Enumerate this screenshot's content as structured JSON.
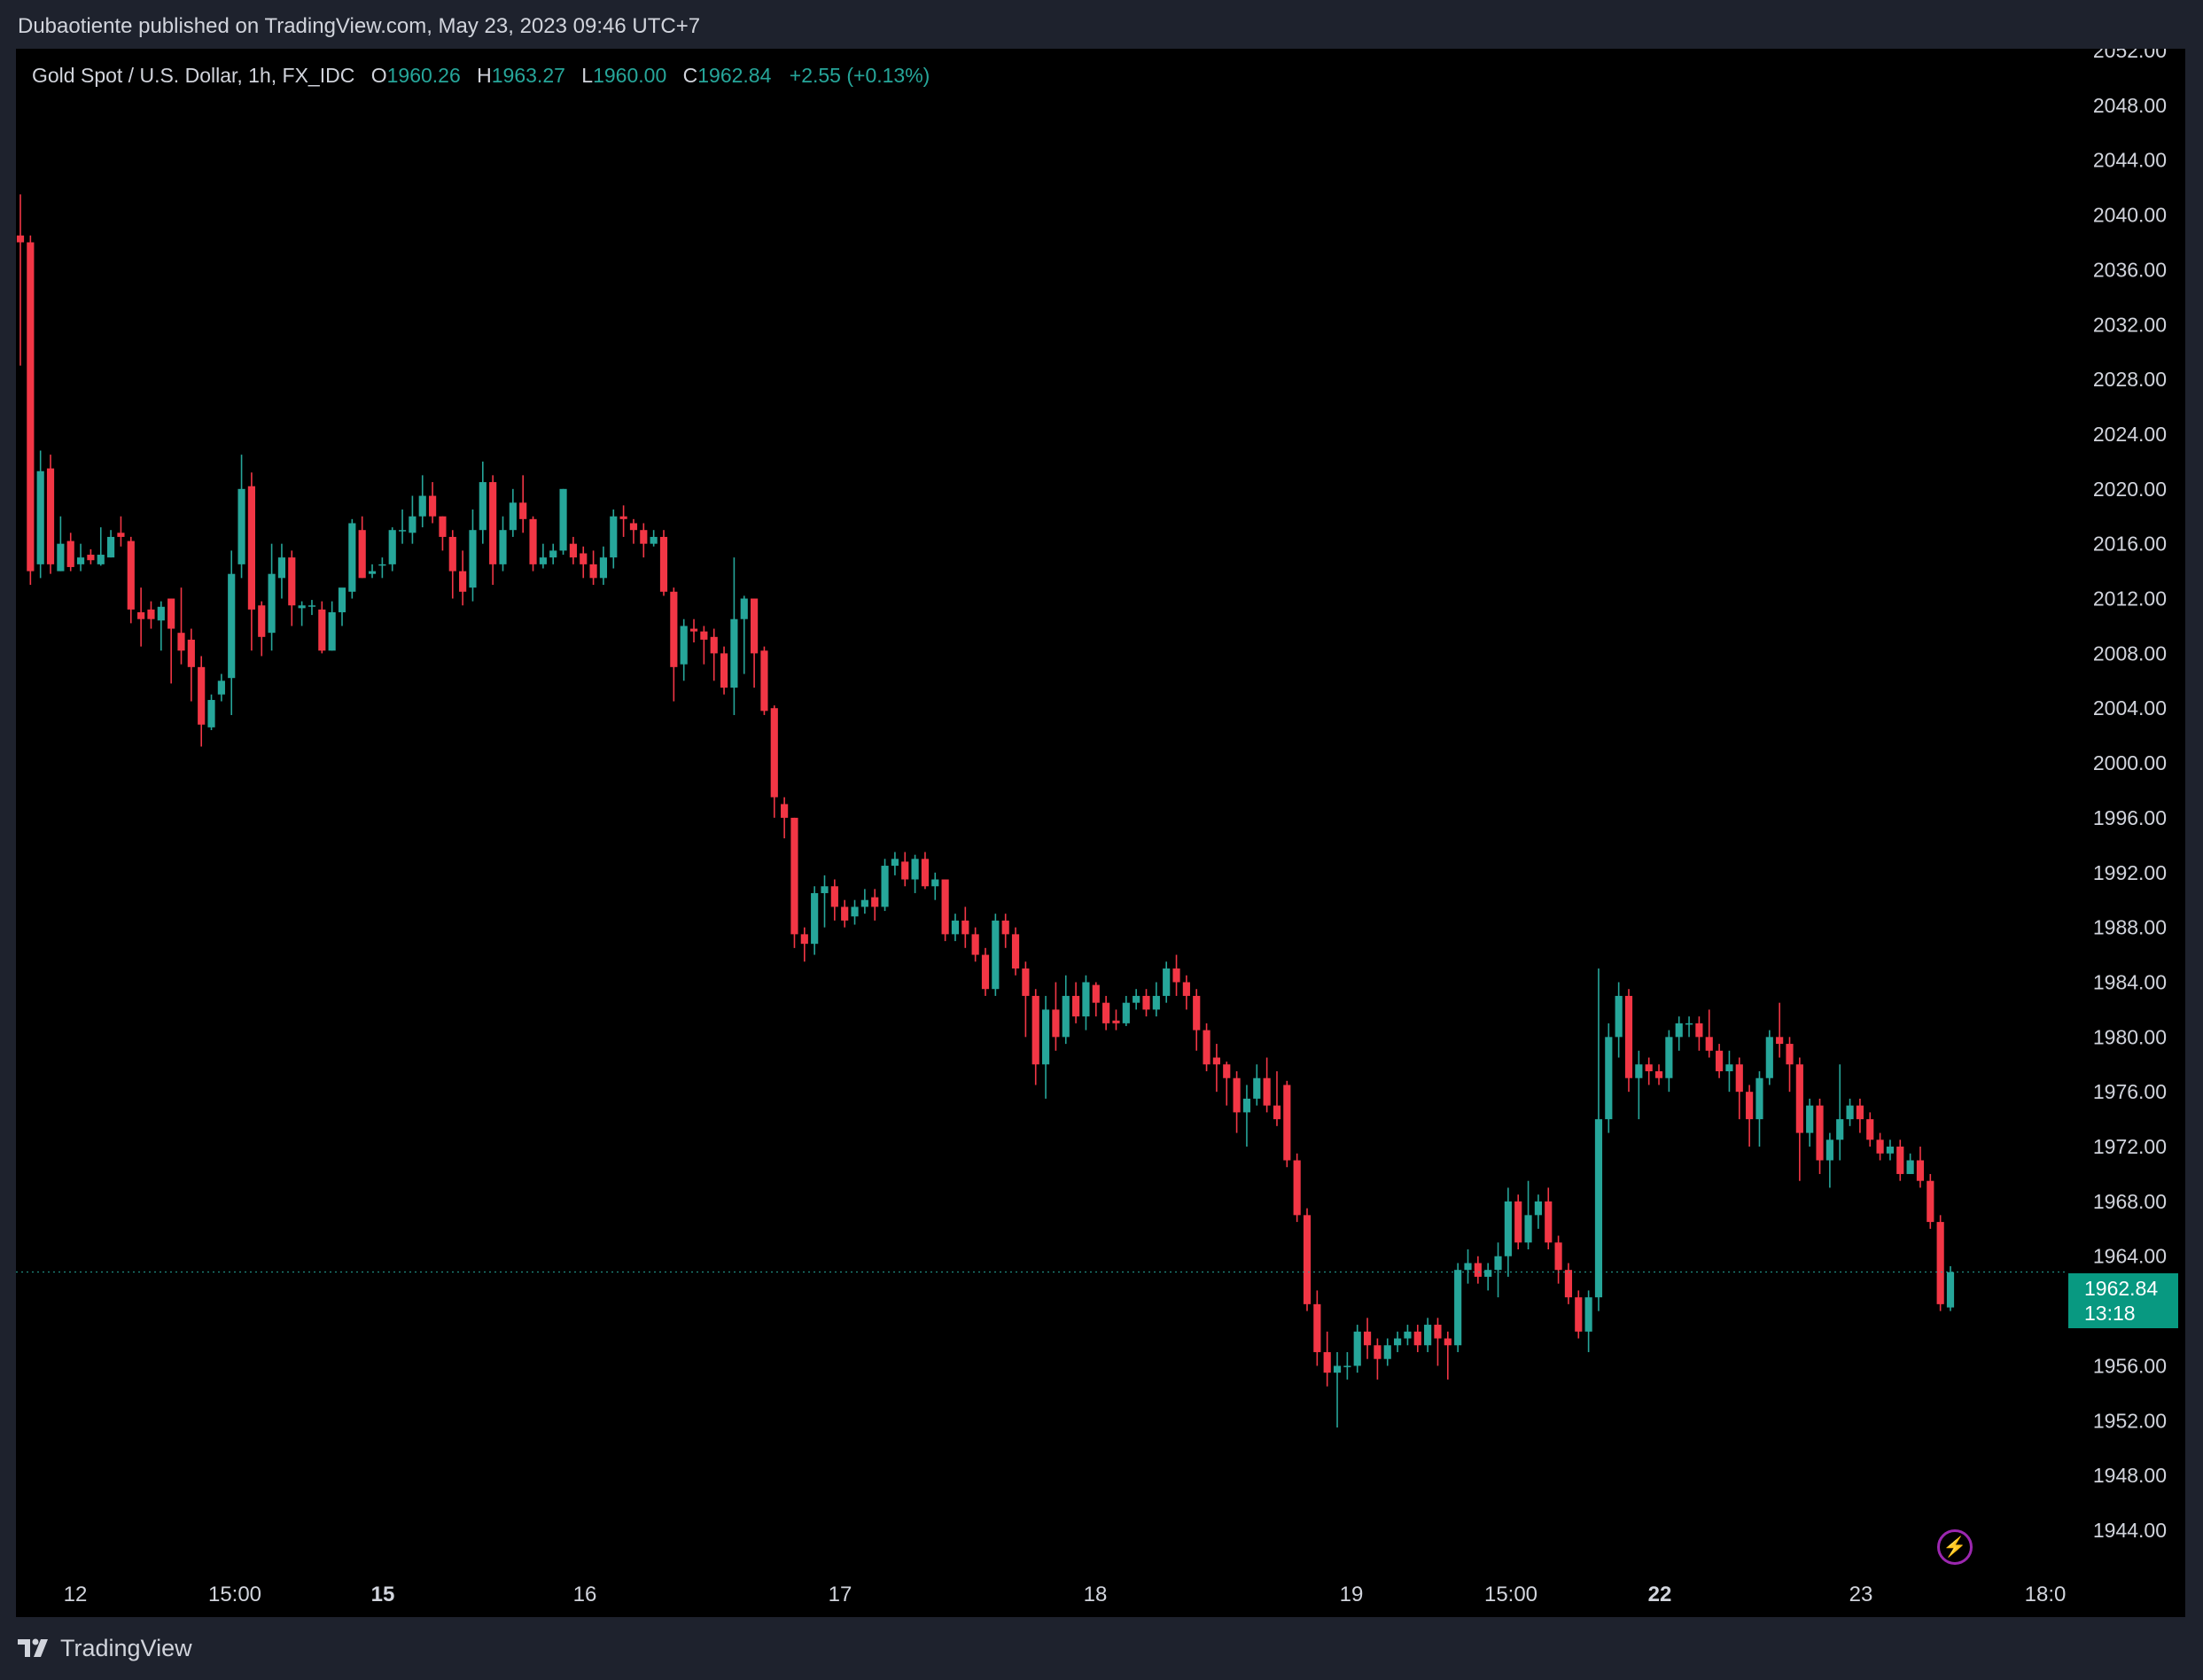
{
  "header": {
    "published_text": "Dubaotiente published on TradingView.com, May 23, 2023 09:46 UTC+7"
  },
  "legend": {
    "symbol": "Gold Spot / U.S. Dollar, 1h, FX_IDC",
    "open_label": "O",
    "open": "1960.26",
    "high_label": "H",
    "high": "1963.27",
    "low_label": "L",
    "low": "1960.00",
    "close_label": "C",
    "close": "1962.84",
    "change": "+2.55 (+0.13%)"
  },
  "price_badge": {
    "price": "1962.84",
    "countdown": "13:18"
  },
  "footer": {
    "brand": "TradingView"
  },
  "colors": {
    "up": "#26a69a",
    "down": "#f23645",
    "background": "#000000",
    "frame": "#1e222d",
    "last_price_line": "#26a69a",
    "badge": "#089981"
  },
  "icons": {
    "flash": "lightning-bolt-icon",
    "logo": "tradingview-logo-icon"
  },
  "chart_data": {
    "type": "candlestick",
    "title": "Gold Spot / U.S. Dollar, 1h, FX_IDC",
    "y_ticks": [
      "2052.00",
      "2048.00",
      "2044.00",
      "2040.00",
      "2036.00",
      "2032.00",
      "2028.00",
      "2024.00",
      "2020.00",
      "2016.00",
      "2012.00",
      "2008.00",
      "2004.00",
      "2000.00",
      "1996.00",
      "1992.00",
      "1988.00",
      "1984.00",
      "1980.00",
      "1976.00",
      "1972.00",
      "1968.00",
      "1964.00",
      "1960.00",
      "1956.00",
      "1952.00",
      "1948.00",
      "1944.00"
    ],
    "ylim": [
      1942,
      2052
    ],
    "x_ticks": [
      {
        "label": "12",
        "bold": false
      },
      {
        "label": "15:00",
        "bold": false
      },
      {
        "label": "15",
        "bold": true
      },
      {
        "label": "16",
        "bold": false
      },
      {
        "label": "17",
        "bold": false
      },
      {
        "label": "18",
        "bold": false
      },
      {
        "label": "19",
        "bold": false
      },
      {
        "label": "15:00",
        "bold": false
      },
      {
        "label": "22",
        "bold": true
      },
      {
        "label": "23",
        "bold": false
      },
      {
        "label": "18:0",
        "bold": false
      }
    ],
    "last_price": 1962.84,
    "grid": false,
    "candles": [
      [
        2038.5,
        2038.0,
        2041.5,
        2029.0
      ],
      [
        2038.0,
        2014.0,
        2038.5,
        2013.0
      ],
      [
        2014.5,
        2021.3,
        2022.8,
        2013.5
      ],
      [
        2021.5,
        2014.5,
        2022.5,
        2013.8
      ],
      [
        2014.0,
        2016.0,
        2018.0,
        2014.0
      ],
      [
        2016.2,
        2014.3,
        2016.8,
        2014.0
      ],
      [
        2014.5,
        2015.0,
        2016.0,
        2014.0
      ],
      [
        2015.2,
        2014.8,
        2015.6,
        2014.5
      ],
      [
        2014.5,
        2015.2,
        2017.2,
        2014.4
      ],
      [
        2015.0,
        2016.5,
        2017.0,
        2015.0
      ],
      [
        2016.8,
        2016.5,
        2018.0,
        2015.8
      ],
      [
        2016.2,
        2011.2,
        2016.5,
        2010.2
      ],
      [
        2011.0,
        2010.5,
        2012.8,
        2008.5
      ],
      [
        2011.2,
        2010.5,
        2011.8,
        2009.8
      ],
      [
        2010.4,
        2011.4,
        2011.8,
        2008.2
      ],
      [
        2012.0,
        2009.8,
        2012.0,
        2005.8
      ],
      [
        2009.5,
        2008.2,
        2012.8,
        2007.2
      ],
      [
        2009.0,
        2007.0,
        2009.8,
        2004.5
      ],
      [
        2007.0,
        2002.8,
        2007.8,
        2001.2
      ],
      [
        2002.6,
        2004.6,
        2005.0,
        2002.4
      ],
      [
        2005.0,
        2006.0,
        2006.5,
        2004.5
      ],
      [
        2006.2,
        2013.8,
        2015.5,
        2003.5
      ],
      [
        2014.5,
        2020.0,
        2022.5,
        2013.5
      ],
      [
        2020.2,
        2011.2,
        2021.2,
        2008.2
      ],
      [
        2011.5,
        2009.2,
        2011.8,
        2007.8
      ],
      [
        2009.5,
        2013.8,
        2016.0,
        2008.2
      ],
      [
        2013.5,
        2015.0,
        2016.0,
        2012.0
      ],
      [
        2015.0,
        2011.5,
        2015.5,
        2010.0
      ],
      [
        2011.3,
        2011.5,
        2011.8,
        2010.0
      ],
      [
        2011.5,
        2011.5,
        2011.9,
        2010.8
      ],
      [
        2011.2,
        2008.2,
        2011.8,
        2008.0
      ],
      [
        2008.2,
        2011.0,
        2011.8,
        2008.2
      ],
      [
        2011.0,
        2012.8,
        2012.0,
        2010.0
      ],
      [
        2012.5,
        2017.5,
        2017.8,
        2012.0
      ],
      [
        2017.0,
        2013.5,
        2018.0,
        2013.5
      ],
      [
        2013.8,
        2014.0,
        2014.5,
        2013.5
      ],
      [
        2014.5,
        2014.5,
        2015.0,
        2013.5
      ],
      [
        2014.5,
        2017.0,
        2017.2,
        2014.0
      ],
      [
        2017.0,
        2017.0,
        2018.5,
        2016.0
      ],
      [
        2016.8,
        2018.0,
        2019.5,
        2016.0
      ],
      [
        2018.0,
        2019.5,
        2021.0,
        2017.2
      ],
      [
        2019.5,
        2018.0,
        2020.5,
        2017.5
      ],
      [
        2018.0,
        2016.5,
        2018.0,
        2015.5
      ],
      [
        2016.5,
        2014.0,
        2017.0,
        2012.0
      ],
      [
        2014.0,
        2012.5,
        2015.5,
        2011.5
      ],
      [
        2012.8,
        2017.0,
        2018.5,
        2011.8
      ],
      [
        2017.0,
        2020.5,
        2022.0,
        2016.0
      ],
      [
        2020.5,
        2014.5,
        2021.0,
        2013.0
      ],
      [
        2014.5,
        2017.0,
        2018.0,
        2014.0
      ],
      [
        2017.0,
        2019.0,
        2020.0,
        2016.5
      ],
      [
        2019.0,
        2017.8,
        2021.0,
        2016.8
      ],
      [
        2017.8,
        2014.5,
        2018.0,
        2014.0
      ],
      [
        2014.5,
        2015.0,
        2016.0,
        2014.2
      ],
      [
        2015.0,
        2015.5,
        2016.0,
        2014.5
      ],
      [
        2015.5,
        2020.0,
        2020.0,
        2015.2
      ],
      [
        2016.0,
        2015.0,
        2016.5,
        2014.5
      ],
      [
        2015.3,
        2014.5,
        2015.8,
        2013.5
      ],
      [
        2014.5,
        2013.5,
        2015.5,
        2013.0
      ],
      [
        2013.5,
        2015.0,
        2015.8,
        2013.0
      ],
      [
        2015.0,
        2018.0,
        2018.5,
        2014.2
      ],
      [
        2018.0,
        2017.8,
        2018.8,
        2016.5
      ],
      [
        2017.5,
        2017.0,
        2017.8,
        2016.0
      ],
      [
        2017.0,
        2016.0,
        2017.5,
        2015.0
      ],
      [
        2016.0,
        2016.5,
        2017.0,
        2015.8
      ],
      [
        2016.5,
        2012.5,
        2017.0,
        2012.2
      ],
      [
        2012.5,
        2007.0,
        2012.8,
        2004.5
      ],
      [
        2007.2,
        2010.0,
        2010.5,
        2006.0
      ],
      [
        2009.8,
        2009.6,
        2010.5,
        2008.8
      ],
      [
        2009.6,
        2009.0,
        2010.0,
        2007.2
      ],
      [
        2009.2,
        2008.0,
        2009.8,
        2006.0
      ],
      [
        2008.0,
        2005.5,
        2008.5,
        2005.0
      ],
      [
        2005.5,
        2010.5,
        2015.0,
        2003.5
      ],
      [
        2010.5,
        2012.0,
        2012.2,
        2006.5
      ],
      [
        2012.0,
        2008.0,
        2012.0,
        2005.5
      ],
      [
        2008.2,
        2003.8,
        2008.5,
        2003.5
      ],
      [
        2004.0,
        1997.5,
        2004.2,
        1996.0
      ],
      [
        1997.0,
        1996.0,
        1997.5,
        1994.5
      ],
      [
        1996.0,
        1987.5,
        1996.0,
        1986.5
      ],
      [
        1987.5,
        1986.8,
        1988.0,
        1985.5
      ],
      [
        1986.8,
        1990.5,
        1991.0,
        1986.0
      ],
      [
        1990.5,
        1991.0,
        1991.8,
        1988.0
      ],
      [
        1991.0,
        1989.5,
        1991.5,
        1988.5
      ],
      [
        1989.5,
        1988.5,
        1990.0,
        1988.0
      ],
      [
        1988.8,
        1989.5,
        1990.0,
        1988.2
      ],
      [
        1989.5,
        1990.0,
        1990.8,
        1989.0
      ],
      [
        1990.2,
        1989.5,
        1990.8,
        1988.5
      ],
      [
        1989.5,
        1992.5,
        1993.0,
        1989.2
      ],
      [
        1992.5,
        1993.0,
        1993.5,
        1991.8
      ],
      [
        1992.8,
        1991.5,
        1993.5,
        1991.0
      ],
      [
        1991.5,
        1993.0,
        1993.3,
        1990.5
      ],
      [
        1993.0,
        1991.0,
        1993.5,
        1990.8
      ],
      [
        1991.0,
        1991.5,
        1992.0,
        1990.0
      ],
      [
        1991.5,
        1987.5,
        1991.5,
        1987.0
      ],
      [
        1987.5,
        1988.5,
        1989.0,
        1987.0
      ],
      [
        1988.5,
        1987.5,
        1989.5,
        1986.5
      ],
      [
        1987.5,
        1986.0,
        1988.0,
        1985.5
      ],
      [
        1986.0,
        1983.5,
        1986.5,
        1983.0
      ],
      [
        1983.5,
        1988.5,
        1989.0,
        1983.0
      ],
      [
        1988.5,
        1987.5,
        1989.0,
        1986.5
      ],
      [
        1987.5,
        1985.0,
        1988.0,
        1984.5
      ],
      [
        1985.0,
        1983.0,
        1985.5,
        1980.0
      ],
      [
        1983.0,
        1978.0,
        1983.5,
        1976.5
      ],
      [
        1978.0,
        1982.0,
        1983.0,
        1975.5
      ],
      [
        1982.0,
        1980.0,
        1984.0,
        1979.0
      ],
      [
        1980.0,
        1983.0,
        1984.5,
        1979.5
      ],
      [
        1983.0,
        1981.5,
        1984.0,
        1981.0
      ],
      [
        1981.5,
        1984.0,
        1984.5,
        1980.5
      ],
      [
        1983.8,
        1982.5,
        1984.0,
        1981.5
      ],
      [
        1982.5,
        1981.0,
        1983.0,
        1980.5
      ],
      [
        1981.2,
        1981.0,
        1982.0,
        1980.5
      ],
      [
        1981.0,
        1982.5,
        1983.0,
        1980.8
      ],
      [
        1982.5,
        1983.0,
        1983.5,
        1982.0
      ],
      [
        1983.0,
        1982.0,
        1983.5,
        1981.5
      ],
      [
        1982.0,
        1983.0,
        1984.0,
        1981.5
      ],
      [
        1983.0,
        1985.0,
        1985.5,
        1982.5
      ],
      [
        1985.0,
        1984.0,
        1986.0,
        1983.0
      ],
      [
        1984.0,
        1983.0,
        1984.5,
        1982.0
      ],
      [
        1983.0,
        1980.5,
        1983.5,
        1979.0
      ],
      [
        1980.5,
        1978.0,
        1981.0,
        1977.5
      ],
      [
        1978.5,
        1978.0,
        1979.5,
        1976.0
      ],
      [
        1978.0,
        1977.0,
        1978.2,
        1975.0
      ],
      [
        1977.0,
        1974.5,
        1977.5,
        1973.0
      ],
      [
        1974.5,
        1975.5,
        1976.5,
        1972.0
      ],
      [
        1975.5,
        1977.0,
        1978.0,
        1975.0
      ],
      [
        1977.0,
        1975.0,
        1978.5,
        1974.5
      ],
      [
        1975.0,
        1974.0,
        1977.5,
        1973.5
      ],
      [
        1976.5,
        1971.0,
        1976.8,
        1970.5
      ],
      [
        1971.0,
        1967.0,
        1971.5,
        1966.5
      ],
      [
        1967.0,
        1960.5,
        1967.5,
        1960.0
      ],
      [
        1960.5,
        1957.0,
        1961.5,
        1956.0
      ],
      [
        1957.0,
        1955.5,
        1958.5,
        1954.5
      ],
      [
        1955.5,
        1956.0,
        1957.0,
        1951.5
      ],
      [
        1956.0,
        1956.0,
        1957.0,
        1955.0
      ],
      [
        1956.0,
        1958.5,
        1959.0,
        1955.5
      ],
      [
        1958.5,
        1957.5,
        1959.5,
        1956.5
      ],
      [
        1957.5,
        1956.5,
        1958.0,
        1955.0
      ],
      [
        1956.5,
        1957.5,
        1958.0,
        1956.0
      ],
      [
        1957.5,
        1958.0,
        1958.5,
        1957.0
      ],
      [
        1958.0,
        1958.5,
        1959.0,
        1957.5
      ],
      [
        1958.5,
        1957.5,
        1959.0,
        1957.0
      ],
      [
        1957.5,
        1959.0,
        1959.5,
        1957.0
      ],
      [
        1959.0,
        1958.0,
        1959.5,
        1956.0
      ],
      [
        1958.0,
        1957.5,
        1958.5,
        1955.0
      ],
      [
        1957.5,
        1963.0,
        1963.5,
        1957.0
      ],
      [
        1963.0,
        1963.5,
        1964.5,
        1962.0
      ],
      [
        1963.5,
        1962.5,
        1964.0,
        1962.0
      ],
      [
        1962.5,
        1963.0,
        1963.5,
        1961.5
      ],
      [
        1963.0,
        1964.0,
        1965.0,
        1961.0
      ],
      [
        1964.0,
        1968.0,
        1969.0,
        1962.5
      ],
      [
        1968.0,
        1965.0,
        1968.5,
        1964.5
      ],
      [
        1965.0,
        1967.0,
        1969.5,
        1964.5
      ],
      [
        1967.0,
        1968.0,
        1968.5,
        1966.0
      ],
      [
        1968.0,
        1965.0,
        1969.0,
        1964.5
      ],
      [
        1965.0,
        1963.0,
        1965.5,
        1962.0
      ],
      [
        1963.0,
        1961.0,
        1963.5,
        1960.5
      ],
      [
        1961.0,
        1958.5,
        1961.5,
        1958.0
      ],
      [
        1958.5,
        1961.0,
        1961.5,
        1957.0
      ],
      [
        1961.0,
        1974.0,
        1985.0,
        1960.0
      ],
      [
        1974.0,
        1980.0,
        1981.0,
        1973.0
      ],
      [
        1980.0,
        1983.0,
        1984.0,
        1978.5
      ],
      [
        1983.0,
        1977.0,
        1983.5,
        1976.0
      ],
      [
        1977.0,
        1978.0,
        1979.0,
        1974.0
      ],
      [
        1978.0,
        1977.5,
        1978.5,
        1976.5
      ],
      [
        1977.5,
        1977.0,
        1978.0,
        1976.5
      ],
      [
        1977.0,
        1980.0,
        1980.5,
        1976.0
      ],
      [
        1980.0,
        1981.0,
        1981.5,
        1979.0
      ],
      [
        1981.0,
        1981.0,
        1981.5,
        1980.0
      ],
      [
        1981.0,
        1980.0,
        1981.5,
        1979.0
      ],
      [
        1980.0,
        1979.0,
        1982.0,
        1978.5
      ],
      [
        1979.0,
        1977.5,
        1979.5,
        1977.0
      ],
      [
        1977.5,
        1978.0,
        1979.0,
        1976.0
      ],
      [
        1978.0,
        1976.0,
        1978.5,
        1974.0
      ],
      [
        1976.0,
        1974.0,
        1976.5,
        1972.0
      ],
      [
        1974.0,
        1977.0,
        1977.5,
        1972.0
      ],
      [
        1977.0,
        1980.0,
        1980.5,
        1976.5
      ],
      [
        1980.0,
        1979.5,
        1982.5,
        1978.5
      ],
      [
        1979.5,
        1978.0,
        1980.0,
        1976.0
      ],
      [
        1978.0,
        1973.0,
        1978.5,
        1969.5
      ],
      [
        1973.0,
        1975.0,
        1975.5,
        1972.0
      ],
      [
        1975.0,
        1971.0,
        1975.5,
        1970.0
      ],
      [
        1971.0,
        1972.5,
        1973.0,
        1969.0
      ],
      [
        1972.5,
        1974.0,
        1978.0,
        1971.0
      ],
      [
        1974.0,
        1975.0,
        1975.5,
        1973.5
      ],
      [
        1975.0,
        1974.0,
        1975.5,
        1973.0
      ],
      [
        1974.0,
        1972.5,
        1974.5,
        1972.0
      ],
      [
        1972.5,
        1971.5,
        1973.0,
        1971.0
      ],
      [
        1971.5,
        1972.0,
        1972.5,
        1971.0
      ],
      [
        1972.0,
        1970.0,
        1972.5,
        1969.5
      ],
      [
        1970.0,
        1971.0,
        1971.5,
        1970.0
      ],
      [
        1971.0,
        1969.5,
        1972.0,
        1969.0
      ],
      [
        1969.5,
        1966.5,
        1970.0,
        1966.0
      ],
      [
        1966.5,
        1960.5,
        1967.0,
        1960.0
      ],
      [
        1960.26,
        1962.84,
        1963.27,
        1960.0
      ]
    ]
  }
}
